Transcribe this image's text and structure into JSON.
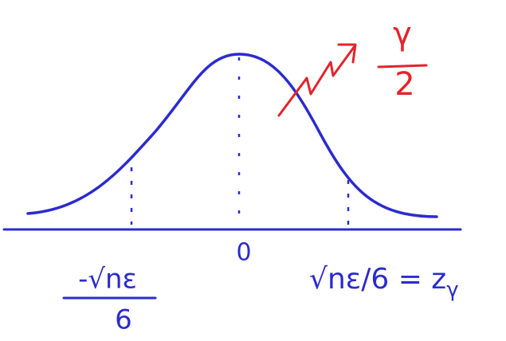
{
  "labels": {
    "left": {
      "numerator": "-√nε",
      "denominator": "6"
    },
    "center": "0",
    "right": {
      "text": "√nε/6 = z",
      "subscript": "γ"
    }
  },
  "annotation": {
    "numerator": "γ",
    "denominator": "2"
  }
}
